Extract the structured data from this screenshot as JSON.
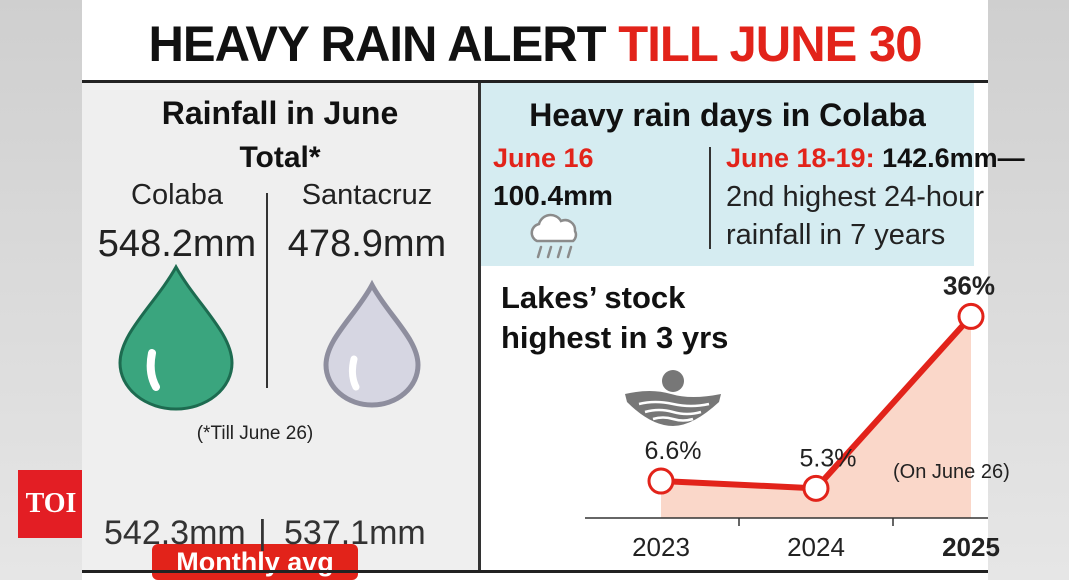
{
  "headline": {
    "part1": "HEAVY RAIN ALERT",
    "part2": "TILL JUNE 30"
  },
  "logo": {
    "text": "TOI"
  },
  "rainfall": {
    "title_line1": "Rainfall in June",
    "title_line2": "Total*",
    "stations": [
      {
        "name": "Colaba",
        "value": "548.2mm",
        "color": "#3aa57e"
      },
      {
        "name": "Santacruz",
        "value": "478.9mm",
        "color": "#c9c9d6"
      }
    ],
    "footnote": "(*Till June 26)",
    "avg_label": "Monthly avg",
    "avg_values": [
      "542.3mm",
      "537.1mm"
    ],
    "avg_separator": "|"
  },
  "heavy_rain": {
    "title": "Heavy rain days in Colaba",
    "day1_date": "June 16",
    "day1_value": "100.4mm",
    "day1_icon": "rain-cloud-icon",
    "day2_date": "June 18-19:",
    "day2_value": "142.6mm—",
    "day2_line2": "2nd highest 24-hour",
    "day2_line3": "rainfall in 7 years"
  },
  "chart_data": {
    "type": "line",
    "title_line1": "Lakes’ stock",
    "title_line2": "highest in 3 yrs",
    "categories": [
      "2023",
      "2024",
      "2025"
    ],
    "values": [
      6.6,
      5.3,
      36
    ],
    "value_labels": [
      "6.6%",
      "5.3%",
      "36%"
    ],
    "unit": "%",
    "ylim": [
      0,
      40
    ],
    "annotation": "(On June 26)",
    "highlight_category": "2025",
    "icon": "lake-icon",
    "colors": {
      "line": "#e2231a",
      "fill": "#f9d3c3",
      "marker_fill": "#ffffff"
    }
  }
}
